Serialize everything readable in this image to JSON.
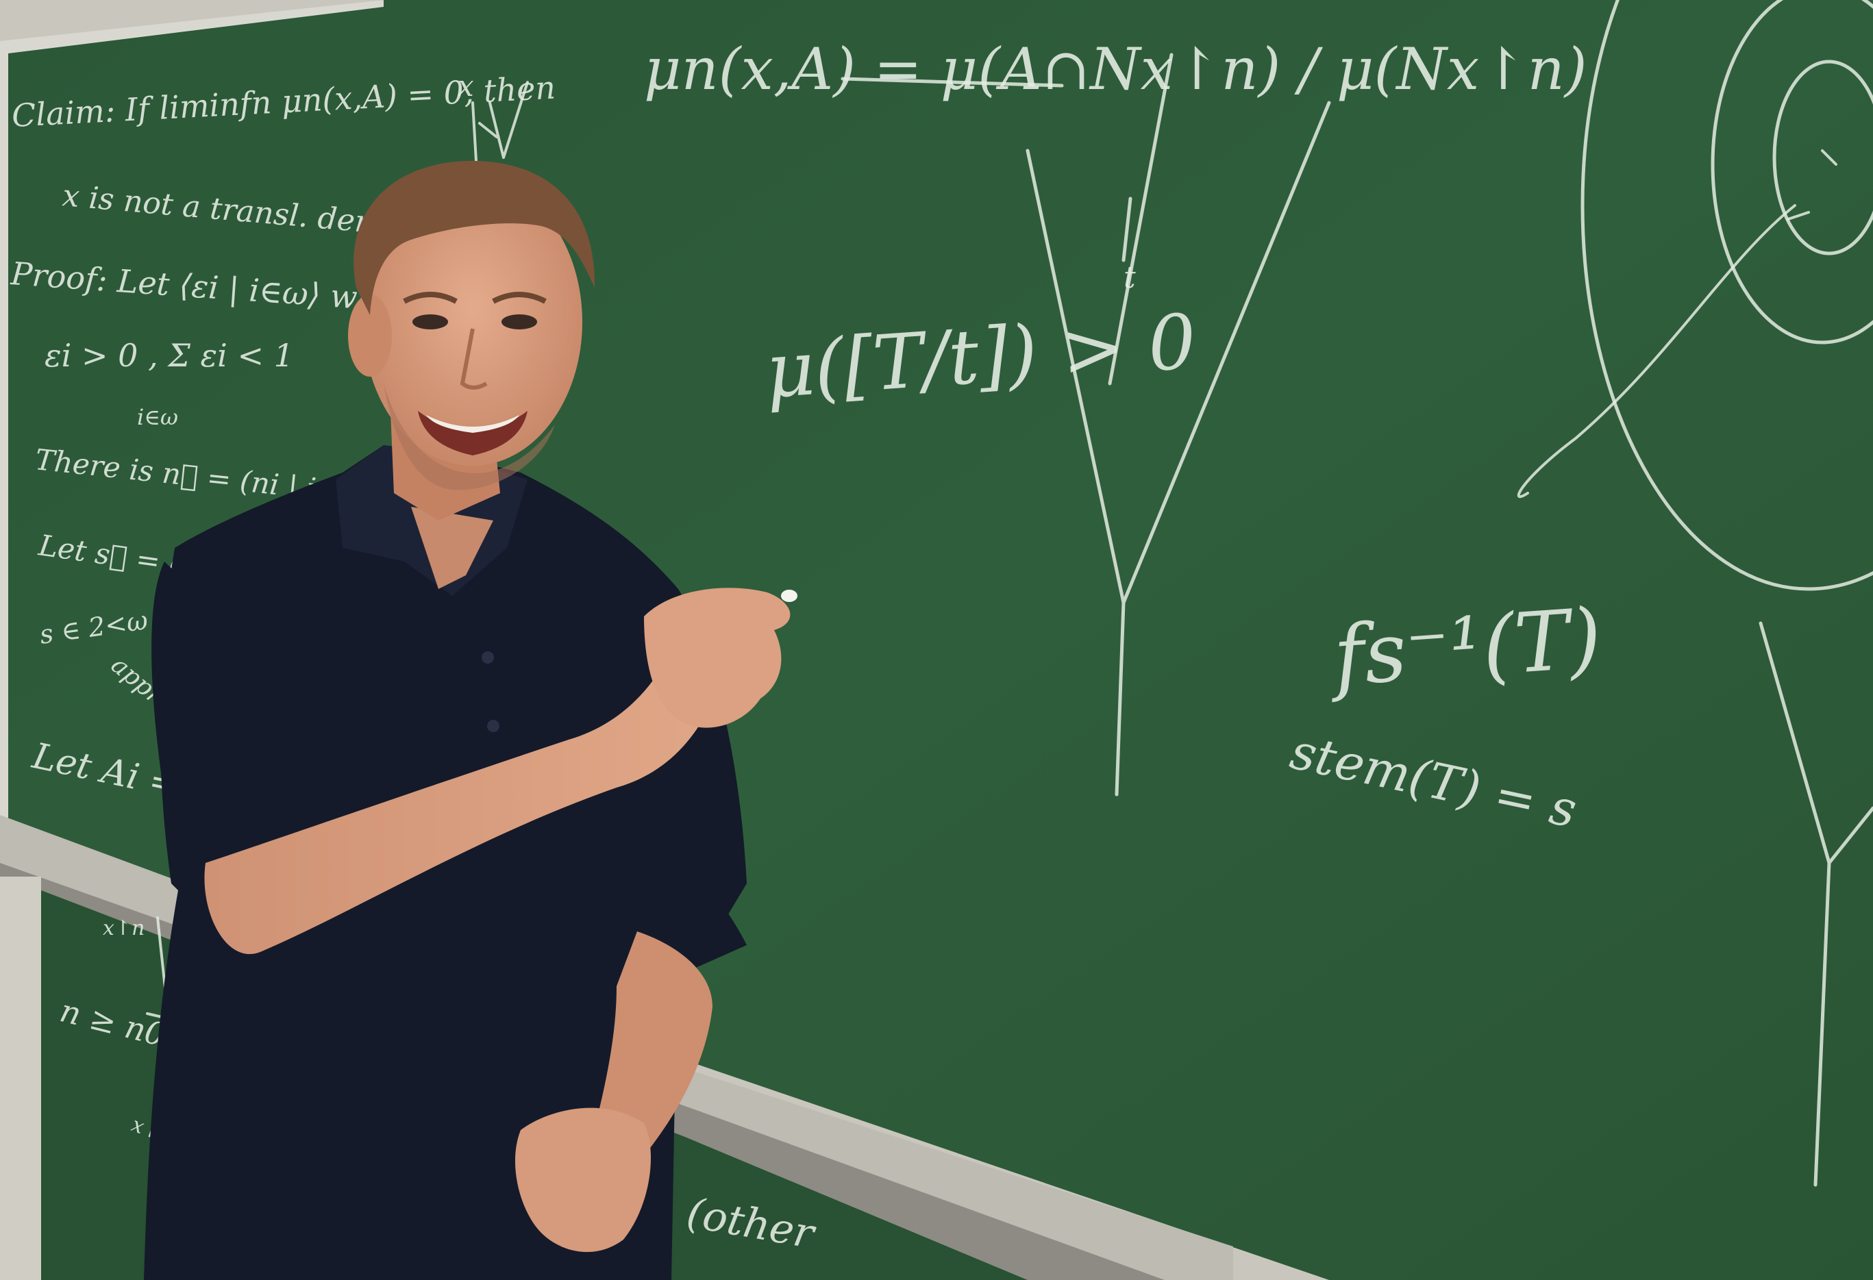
{
  "board_top": {
    "formula_mu_n": "μn(x,A) = μ(A∩Nx↾n) / μ(Nx↾n)",
    "claim": "Claim: If liminfn μn(x,A) = 0, then",
    "claim_line2": "x is not a transl. density of",
    "proof": "Proof: Let ⟨εi | i∈ω⟩ with",
    "eps_line": "εi > 0 , Σ εi < 1",
    "eps_sub": "i∈ω",
    "there_is": "There is n⃗ = (ni | i∈ …",
    "let_s": "Let s⃗ = (s …",
    "s_line": "s ∈ 2<ω …",
    "appro": "appro…",
    "let_A": "Let Ai =",
    "tree_label_x": "x",
    "tree_label_t": "t",
    "mu_T_t": "μ([T/t]) > 0",
    "f_inverse": "fs⁻¹(T)",
    "stem": "stem(T) = s"
  },
  "board_bottom": {
    "x_label": "x↾n",
    "n_ge": "n ≥ n0",
    "x_label2": "x↾n",
    "other": "(other"
  },
  "colors": {
    "board": "#2c5a3a",
    "board_dark": "#234a30",
    "chalk": "#e8efe6",
    "tray": "#b8b6ae",
    "shirt": "#141a2a",
    "skin": "#d59a7c",
    "hair": "#7a5238"
  }
}
